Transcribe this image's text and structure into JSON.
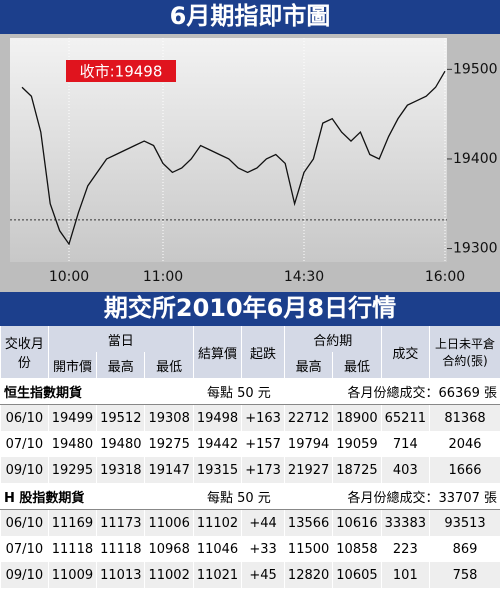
{
  "chart_data": {
    "type": "line",
    "title": "6月期指即市圖",
    "categories": [
      null,
      null,
      null,
      null,
      null,
      "10:00",
      null,
      null,
      null,
      null,
      null,
      null,
      null,
      null,
      null,
      "11:00",
      null,
      null,
      null,
      null,
      null,
      null,
      null,
      null,
      null,
      null,
      null,
      null,
      null,
      null,
      "14:30",
      null,
      null,
      null,
      null,
      null,
      null,
      null,
      null,
      null,
      null,
      null,
      null,
      null,
      null,
      "16:00"
    ],
    "values": [
      19480,
      19470,
      19430,
      19350,
      19320,
      19305,
      19340,
      19370,
      19385,
      19400,
      19405,
      19410,
      19415,
      19420,
      19415,
      19395,
      19385,
      19390,
      19400,
      19415,
      19410,
      19405,
      19400,
      19390,
      19385,
      19390,
      19400,
      19405,
      19395,
      19350,
      19385,
      19400,
      19440,
      19445,
      19430,
      19420,
      19430,
      19405,
      19400,
      19425,
      19445,
      19460,
      19465,
      19470,
      19480,
      19498
    ],
    "color": "#111111",
    "ylim": [
      19285,
      19535
    ],
    "yticks": [
      19300,
      19400,
      19500
    ],
    "reference_line": 19332,
    "annotation": "收市:19498"
  },
  "table": {
    "title": "期交所2010年6月8日行情",
    "header": {
      "month": "交收月份",
      "day": "當日",
      "settle": "結算價",
      "change": "起跌",
      "contract": "合約期",
      "volume": "成交",
      "oi": "上日未平倉合約(張)",
      "open": "開市價",
      "high": "最高",
      "low": "最低",
      "chigh": "最高",
      "clow": "最低"
    },
    "sections": [
      {
        "name": "恒生指數期貨",
        "unit": "每點 50 元",
        "total": "各月份總成交：66369 張",
        "rows": [
          [
            "06/10",
            "19499",
            "19512",
            "19308",
            "19498",
            "+163",
            "22712",
            "18900",
            "65211",
            "81368"
          ],
          [
            "07/10",
            "19480",
            "19480",
            "19275",
            "19442",
            "+157",
            "19794",
            "19059",
            "714",
            "2046"
          ],
          [
            "09/10",
            "19295",
            "19318",
            "19147",
            "19315",
            "+173",
            "21927",
            "18725",
            "403",
            "1666"
          ]
        ]
      },
      {
        "name": "H 股指數期貨",
        "unit": "每點 50 元",
        "total": "各月份總成交：33707 張",
        "rows": [
          [
            "06/10",
            "11169",
            "11173",
            "11006",
            "11102",
            "+44",
            "13566",
            "10616",
            "33383",
            "93513"
          ],
          [
            "07/10",
            "11118",
            "11118",
            "10968",
            "11046",
            "+33",
            "11500",
            "10858",
            "223",
            "869"
          ],
          [
            "09/10",
            "11009",
            "11013",
            "11002",
            "11021",
            "+45",
            "12820",
            "10605",
            "101",
            "758"
          ]
        ]
      }
    ]
  }
}
